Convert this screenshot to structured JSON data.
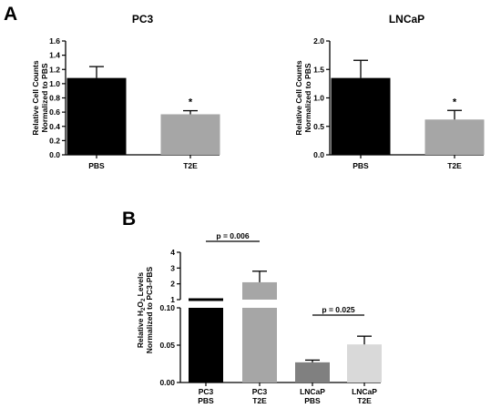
{
  "panel_labels": {
    "a": "A",
    "b": "B"
  },
  "chart_data": [
    {
      "type": "bar",
      "title": "PC3",
      "ylabel_lines": [
        "Relative Cell Counts",
        "Normalized to PBS"
      ],
      "categories": [
        "PBS",
        "T2E"
      ],
      "values": [
        1.08,
        0.57
      ],
      "errors": [
        0.16,
        0.05
      ],
      "bar_colors": [
        "#000000",
        "#a6a6a6"
      ],
      "ylim": [
        0,
        1.6
      ],
      "yticks": [
        0,
        0.2,
        0.4,
        0.6,
        0.8,
        1.0,
        1.2,
        1.4,
        1.6
      ],
      "ytick_labels": [
        "0.0",
        "0.2",
        "0.4",
        "0.6",
        "0.8",
        "1.0",
        "1.2",
        "1.4",
        "1.6"
      ],
      "annotations": [
        {
          "category": "T2E",
          "text": "*"
        }
      ]
    },
    {
      "type": "bar",
      "title": "LNCaP",
      "ylabel_lines": [
        "Relative Cell Counts",
        "Normalized to PBS"
      ],
      "categories": [
        "PBS",
        "T2E"
      ],
      "values": [
        1.35,
        0.62
      ],
      "errors": [
        0.31,
        0.16
      ],
      "bar_colors": [
        "#000000",
        "#a6a6a6"
      ],
      "ylim": [
        0,
        2.0
      ],
      "yticks": [
        0,
        0.5,
        1.0,
        1.5,
        2.0
      ],
      "ytick_labels": [
        "0.0",
        "0.5",
        "1.0",
        "1.5",
        "2.0"
      ],
      "annotations": [
        {
          "category": "T2E",
          "text": "*"
        }
      ]
    },
    {
      "type": "bar",
      "title": "",
      "ylabel_line1": "Relative H2O2 Levels",
      "ylabel_line2": "Normalized to PC3-PBS",
      "categories": [
        [
          "PC3",
          "PBS"
        ],
        [
          "PC3",
          "T2E"
        ],
        [
          "LNCaP",
          "PBS"
        ],
        [
          "LNCaP",
          "T2E"
        ]
      ],
      "values": [
        1.0,
        2.1,
        0.027,
        0.051
      ],
      "errors": [
        0.0,
        0.7,
        0.003,
        0.011
      ],
      "bar_colors": [
        "#000000",
        "#a6a6a6",
        "#808080",
        "#d9d9d9"
      ],
      "broken_axis": true,
      "lower_segment": {
        "ylim": [
          0,
          0.1
        ],
        "yticks": [
          0,
          0.05,
          0.1
        ],
        "ytick_labels": [
          "0.00",
          "0.05",
          "0.10"
        ]
      },
      "upper_segment": {
        "ylim": [
          1,
          4
        ],
        "yticks": [
          1,
          2,
          3,
          4
        ],
        "ytick_labels": [
          "1",
          "2",
          "3",
          "4"
        ]
      },
      "comparisons": [
        {
          "from": 0,
          "to": 1,
          "text": "p = 0.006"
        },
        {
          "from": 2,
          "to": 3,
          "text": "p = 0.025"
        }
      ]
    }
  ]
}
